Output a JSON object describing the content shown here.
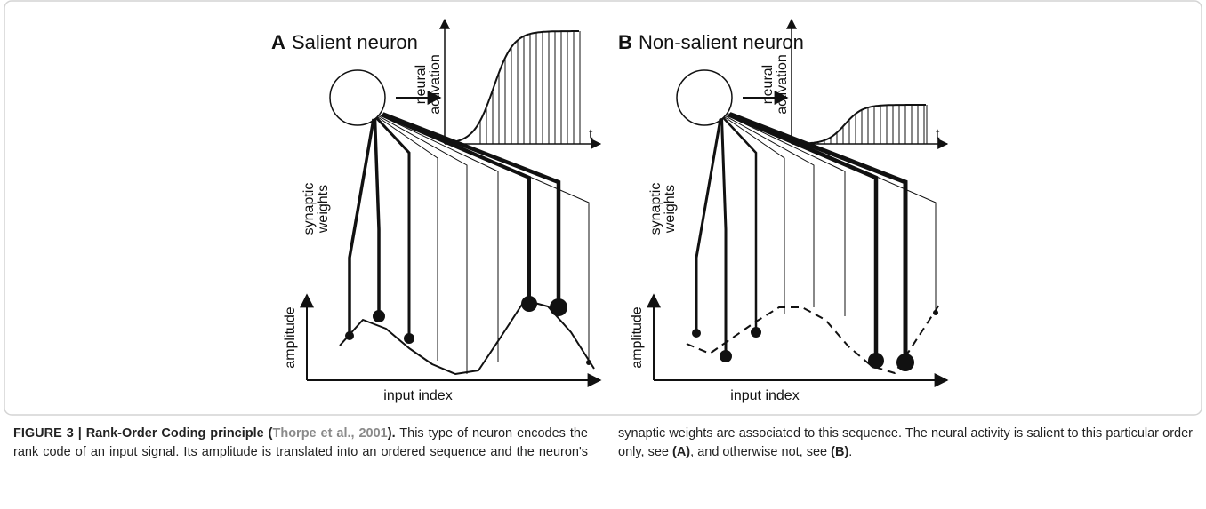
{
  "figure": {
    "panels": [
      {
        "letter": "A",
        "title": "Salient neuron",
        "activation_label": [
          "neural",
          "activation"
        ],
        "time_label": "t",
        "weights_label": [
          "synaptic",
          "weights"
        ],
        "amplitude_label": "amplitude",
        "x_label": "input index"
      },
      {
        "letter": "B",
        "title": "Non-salient neuron",
        "activation_label": [
          "neural",
          "activation"
        ],
        "time_label": "t",
        "weights_label": [
          "synaptic",
          "weights"
        ],
        "amplitude_label": "amplitude",
        "x_label": "input index"
      }
    ],
    "caption": {
      "label": "FIGURE 3 | Rank-Order Coding principle (",
      "citation": "Thorpe et al., 2001",
      "label_end": ").",
      "text_1": " This type of neuron encodes the rank code of an input signal. Its amplitude is translated into an ordered sequence and the neuron's synaptic weights are associated to this sequence. The neural activity is salient to this particular order only, see ",
      "ref_a": "(A)",
      "text_2": ", and otherwise not, see ",
      "ref_b": "(B)",
      "text_3": "."
    }
  }
}
